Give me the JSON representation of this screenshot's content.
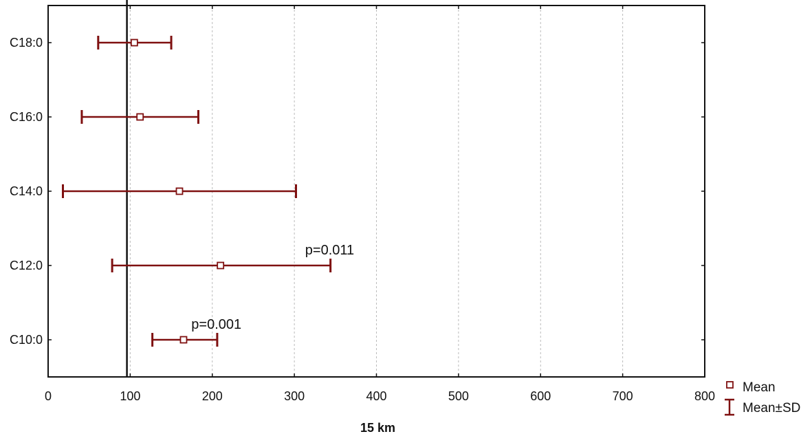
{
  "chart_data": {
    "type": "scatter",
    "title": "",
    "xlabel": "15 km",
    "ylabel": "",
    "xlim": [
      0,
      800
    ],
    "xticks": [
      0,
      100,
      200,
      300,
      400,
      500,
      600,
      700,
      800
    ],
    "categories": [
      "C18:0",
      "C16:0",
      "C14:0",
      "C12:0",
      "C10:0"
    ],
    "series": [
      {
        "name": "Mean",
        "values": [
          105,
          112,
          160,
          210,
          165
        ]
      },
      {
        "name": "Mean±SD",
        "lower": [
          61,
          41,
          18,
          78,
          127
        ],
        "upper": [
          150,
          183,
          302,
          344,
          206
        ]
      }
    ],
    "reference_line": 96,
    "annotations": [
      {
        "text": "p=0.011",
        "category": "C12:0",
        "x": 343
      },
      {
        "text": "p=0.001",
        "category": "C10:0",
        "x": 205
      }
    ],
    "grid": {
      "x": true,
      "y": false,
      "style": "dashed"
    },
    "legend": {
      "position": "bottom-right",
      "entries": [
        "Mean",
        "Mean±SD"
      ]
    },
    "colors": {
      "series": "#7f1010",
      "axis": "#111111",
      "grid": "#bbbbbb"
    }
  }
}
